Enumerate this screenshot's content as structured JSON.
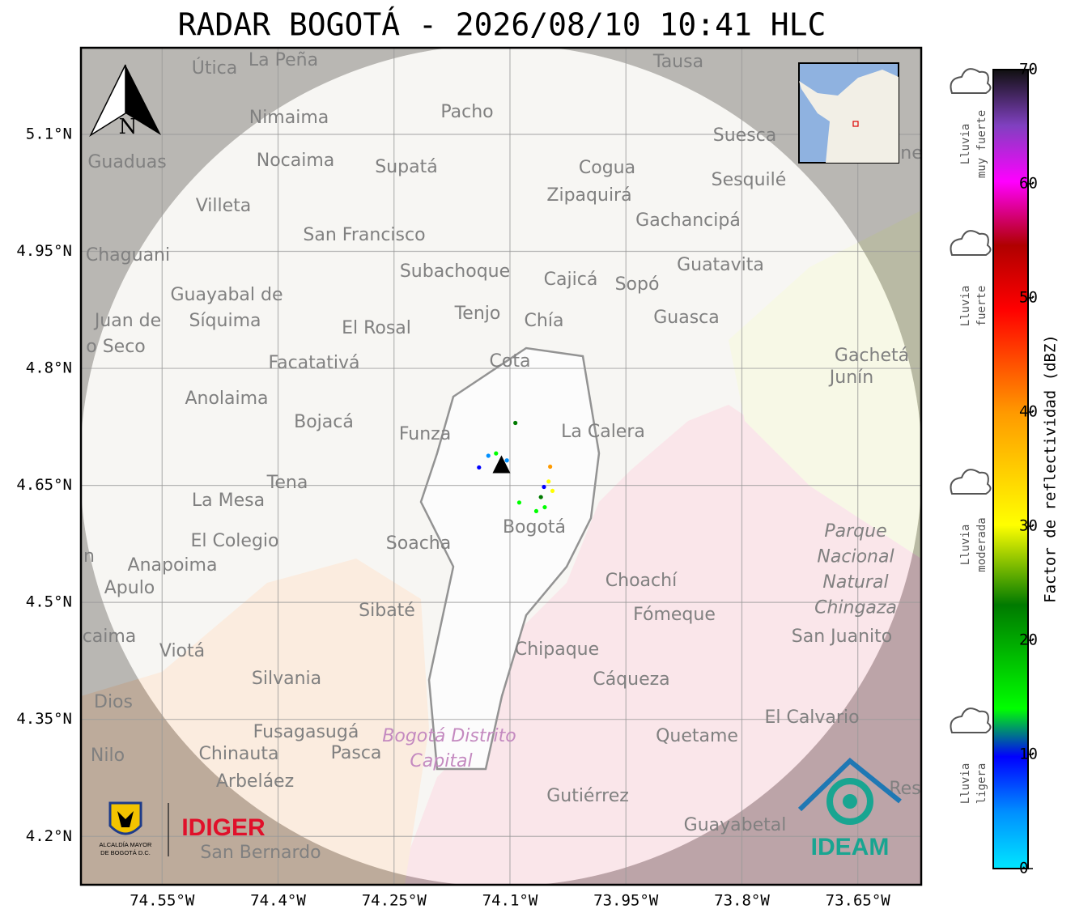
{
  "title": "RADAR BOGOTÁ - 2026/08/10 10:41 HLC",
  "map": {
    "xlim": [
      -74.655,
      -73.568
    ],
    "ylim": [
      4.138,
      5.211
    ],
    "xticks": [
      {
        "value": -74.55,
        "label": "74.55°W"
      },
      {
        "value": -74.4,
        "label": "74.4°W"
      },
      {
        "value": -74.25,
        "label": "74.25°W"
      },
      {
        "value": -74.1,
        "label": "74.1°W"
      },
      {
        "value": -73.95,
        "label": "73.95°W"
      },
      {
        "value": -73.8,
        "label": "73.8°W"
      },
      {
        "value": -73.65,
        "label": "73.65°W"
      }
    ],
    "yticks": [
      {
        "value": 5.1,
        "label": "5.1°N"
      },
      {
        "value": 4.95,
        "label": "4.95°N"
      },
      {
        "value": 4.8,
        "label": "4.8°N"
      },
      {
        "value": 4.65,
        "label": "4.65°N"
      },
      {
        "value": 4.5,
        "label": "4.5°N"
      },
      {
        "value": 4.35,
        "label": "4.35°N"
      },
      {
        "value": 4.2,
        "label": "4.2°N"
      }
    ],
    "grid": true,
    "north": "N",
    "places": [
      "Útica",
      "La Peña",
      "Tausa",
      "Pacho",
      "Nimaima",
      "Guaduas",
      "Nocaima",
      "Supatá",
      "Cogua",
      "Suesca",
      "Sesquilé",
      "Zipaquirá",
      "Villeta",
      "Gachancipá",
      "San Francisco",
      "Chaguani",
      "Guatavita",
      "Subachoque",
      "Cajicá",
      "Sopó",
      "Guayabal de",
      "Síquima",
      "Juan de",
      "Tenjo",
      "Chía",
      "Guasca",
      "El Rosal",
      "o Seco",
      "Facatativá",
      "Cota",
      "Gachetá",
      "Junín",
      "Anolaima",
      "Bojacá",
      "Funza",
      "La Calera",
      "Tena",
      "La Mesa",
      "Bogotá",
      "El Colegio",
      "Soacha",
      "Anapoima",
      "Apulo",
      "Choachí",
      "Sibaté",
      "Fómeque",
      "San Juanito",
      "caima",
      "Viotá",
      "Chipaque",
      "Silvania",
      "Cáqueza",
      "Dios",
      "El Calvario",
      "Fusagasugá",
      "Quetame",
      "Nilo",
      "Chinauta",
      "Pasca",
      "Arbeláez",
      "Gutiérrez",
      "Guayabetal",
      "San Bernardo",
      "Res",
      "ne",
      "n"
    ],
    "park": [
      "Parque",
      "Nacional",
      "Natural",
      "Chingaza"
    ],
    "district": [
      "Bogotá Distrito",
      "Capital"
    ]
  },
  "radar": {
    "site": {
      "lon": -74.111,
      "lat": 4.676
    },
    "echoes": [
      {
        "lon": -74.093,
        "lat": 4.73,
        "dbz": 28
      },
      {
        "lon": -74.128,
        "lat": 4.688,
        "dbz": 8
      },
      {
        "lon": -74.118,
        "lat": 4.691,
        "dbz": 18
      },
      {
        "lon": -74.104,
        "lat": 4.682,
        "dbz": 5
      },
      {
        "lon": -74.14,
        "lat": 4.673,
        "dbz": 10
      },
      {
        "lon": -74.048,
        "lat": 4.674,
        "dbz": 42
      },
      {
        "lon": -74.05,
        "lat": 4.655,
        "dbz": 33
      },
      {
        "lon": -74.056,
        "lat": 4.648,
        "dbz": 10
      },
      {
        "lon": -74.045,
        "lat": 4.643,
        "dbz": 30
      },
      {
        "lon": -74.055,
        "lat": 4.622,
        "dbz": 20
      },
      {
        "lon": -74.066,
        "lat": 4.617,
        "dbz": 22
      },
      {
        "lon": -74.088,
        "lat": 4.628,
        "dbz": 18
      },
      {
        "lon": -74.06,
        "lat": 4.635,
        "dbz": 25
      }
    ]
  },
  "colorbar": {
    "label": "Factor de reflectividad (dBZ)",
    "range": [
      0,
      70
    ],
    "ticks": [
      0,
      10,
      20,
      30,
      40,
      50,
      60,
      70
    ]
  },
  "rain_levels": [
    [
      "Lluvia",
      "muy fuerte"
    ],
    [
      "Lluvia",
      "fuerte"
    ],
    [
      "Lluvia",
      "moderada"
    ],
    [
      "Lluvia",
      "ligera"
    ]
  ],
  "logos": {
    "alcaldia": [
      "ALCALDÍA MAYOR",
      "DE BOGOTÁ D.C."
    ],
    "idiger": "IDIGER",
    "ideam": "IDEAM"
  }
}
